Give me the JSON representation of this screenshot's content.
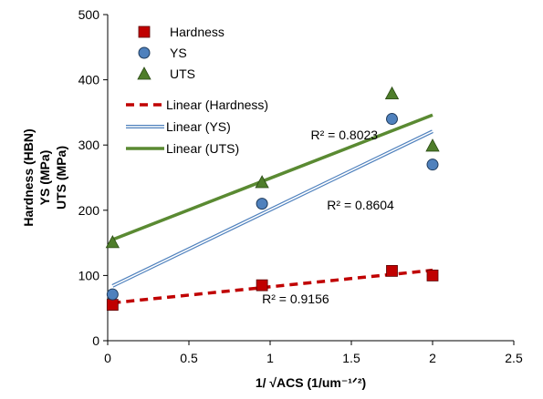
{
  "chart_data": {
    "type": "scatter",
    "title": "",
    "xlabel": "1/ √ACS (1/um⁻¹ᐟ²)",
    "ylabel_lines": [
      "Hardness (HBN)",
      "YS (MPa)",
      "UTS (MPa)"
    ],
    "xlim": [
      0,
      2.5
    ],
    "ylim": [
      0,
      500
    ],
    "x_ticks": [
      "0",
      "0.5",
      "1",
      "1.5",
      "2",
      "2.5"
    ],
    "y_ticks": [
      "0",
      "100",
      "200",
      "300",
      "400",
      "500"
    ],
    "grid": false,
    "legend_position": "top-left",
    "series": [
      {
        "name": "Hardness",
        "marker": "square",
        "color": "#c00000",
        "x": [
          0.03,
          0.95,
          1.75,
          2.0
        ],
        "y": [
          55,
          85,
          107,
          100
        ]
      },
      {
        "name": "YS",
        "marker": "circle",
        "color": "#4f81bd",
        "x": [
          0.03,
          0.95,
          1.75,
          2.0
        ],
        "y": [
          71,
          210,
          340,
          270
        ]
      },
      {
        "name": "UTS",
        "marker": "triangle",
        "color": "#4e7d2a",
        "x": [
          0.03,
          0.95,
          1.75,
          2.0
        ],
        "y": [
          151,
          243,
          379,
          299
        ]
      }
    ],
    "trendlines": [
      {
        "name": "Linear (Hardness)",
        "style": "dashed",
        "color": "#c00000",
        "x": [
          0.03,
          2.0
        ],
        "y": [
          58,
          108
        ],
        "r2": "R² = 0.9156",
        "r2_at": [
          0.95,
          57
        ]
      },
      {
        "name": "Linear (YS)",
        "style": "double",
        "color": "#4f81bd",
        "x": [
          0.03,
          2.0
        ],
        "y": [
          84,
          321
        ],
        "r2": "R² = 0.8604",
        "r2_at": [
          1.35,
          201
        ]
      },
      {
        "name": "Linear (UTS)",
        "style": "solid",
        "color": "#5a8a32",
        "x": [
          0.03,
          2.0
        ],
        "y": [
          155,
          346
        ],
        "r2": "R² = 0.8023",
        "r2_at": [
          1.25,
          309
        ]
      }
    ]
  }
}
